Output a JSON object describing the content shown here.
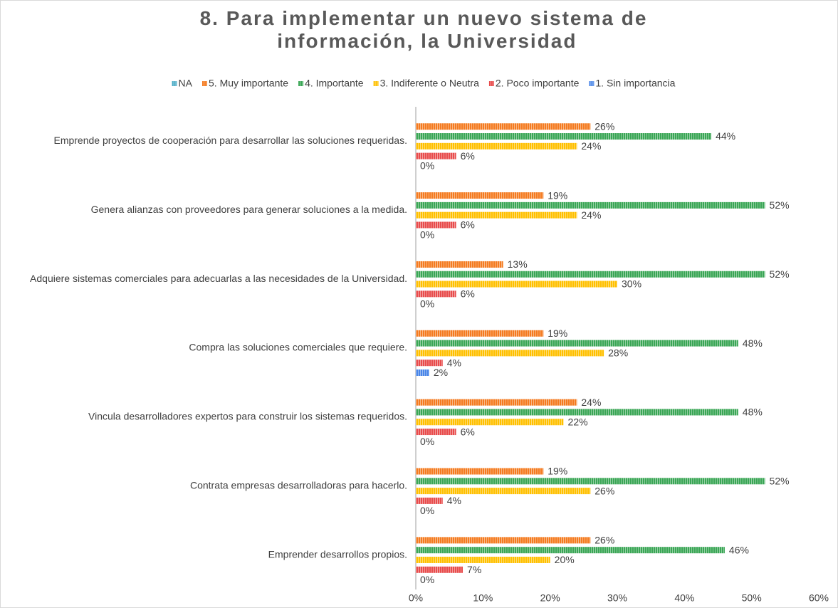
{
  "chart_data": {
    "type": "hbar",
    "title": "8. Para implementar un nuevo sistema de información, la Universidad",
    "categories": [
      "Emprende proyectos de cooperación para desarrollar las soluciones requeridas.",
      "Genera alianzas con proveedores para generar soluciones a la medida.",
      "Adquiere sistemas comerciales para adecuarlas a las necesidades de la Universidad.",
      "Compra las soluciones comerciales que requiere.",
      "Vincula desarrolladores expertos para construir los sistemas requeridos.",
      "Contrata empresas desarrolladoras para hacerlo.",
      "Emprender desarrollos propios."
    ],
    "series": [
      {
        "name": "NA",
        "color": "#4bacc6",
        "values": [
          null,
          null,
          null,
          null,
          null,
          null,
          null
        ]
      },
      {
        "name": "5. Muy importante",
        "color": "#f47b20",
        "values": [
          26,
          19,
          13,
          19,
          24,
          19,
          26
        ],
        "value_labels": [
          "26%",
          "19%",
          "13%",
          "19%",
          "24%",
          "19%",
          "26%"
        ]
      },
      {
        "name": "4. Importante",
        "color": "#3aa655",
        "values": [
          44,
          52,
          52,
          48,
          48,
          52,
          46
        ],
        "value_labels": [
          "44%",
          "52%",
          "52%",
          "48%",
          "48%",
          "52%",
          "46%"
        ]
      },
      {
        "name": "3. Indiferente o Neutra",
        "color": "#ffc000",
        "values": [
          24,
          24,
          30,
          28,
          22,
          26,
          20
        ],
        "value_labels": [
          "24%",
          "24%",
          "30%",
          "28%",
          "22%",
          "26%",
          "20%"
        ]
      },
      {
        "name": "2. Poco importante",
        "color": "#e84c4c",
        "values": [
          6,
          6,
          6,
          4,
          6,
          4,
          7
        ],
        "value_labels": [
          "6%",
          "6%",
          "6%",
          "4%",
          "6%",
          "4%",
          "7%"
        ]
      },
      {
        "name": "1. Sin importancia",
        "color": "#4a86e8",
        "values": [
          0,
          0,
          0,
          2,
          0,
          0,
          0
        ],
        "value_labels": [
          "0%",
          "0%",
          "0%",
          "2%",
          "0%",
          "0%",
          "0%"
        ]
      }
    ],
    "xlim": [
      0,
      60
    ],
    "xticks": [
      {
        "value": 0,
        "label": "0%"
      },
      {
        "value": 10,
        "label": "10%"
      },
      {
        "value": 20,
        "label": "20%"
      },
      {
        "value": 30,
        "label": "30%"
      },
      {
        "value": 40,
        "label": "40%"
      },
      {
        "value": 50,
        "label": "50%"
      },
      {
        "value": 60,
        "label": "60%"
      }
    ],
    "legend": "top",
    "grid": false
  }
}
